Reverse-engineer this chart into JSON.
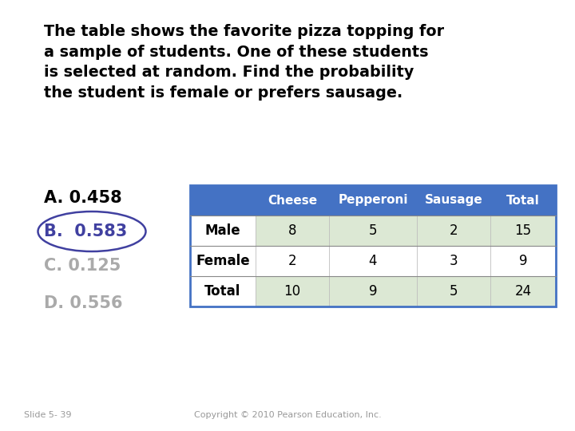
{
  "title_text": "The table shows the favorite pizza topping for\na sample of students. One of these students\nis selected at random. Find the probability\nthe student is female or prefers sausage.",
  "answer_A": "A. 0.458",
  "answer_B": "B.  0.583",
  "answer_C": "C. 0.125",
  "answer_D": "D. 0.556",
  "table_header": [
    "",
    "Cheese",
    "Pepperoni",
    "Sausage",
    "Total"
  ],
  "table_rows": [
    [
      "Male",
      "8",
      "5",
      "2",
      "15"
    ],
    [
      "Female",
      "2",
      "4",
      "3",
      "9"
    ],
    [
      "Total",
      "10",
      "9",
      "5",
      "24"
    ]
  ],
  "header_bg": "#4472C4",
  "header_fg": "#FFFFFF",
  "row_bg_odd": "#DCE8D4",
  "row_bg_even": "#FFFFFF",
  "answer_A_color": "#000000",
  "answer_B_color": "#4040A0",
  "answer_C_color": "#AAAAAA",
  "answer_D_color": "#AAAAAA",
  "slide_label": "Slide 5- 39",
  "copyright": "Copyright © 2010 Pearson Education, Inc.",
  "bg_color": "#FFFFFF",
  "ellipse_color": "#4040A0",
  "table_border_color": "#4472C4"
}
